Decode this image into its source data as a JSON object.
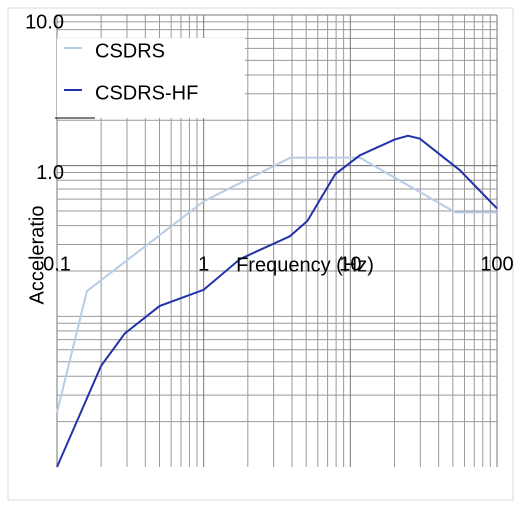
{
  "chart_data": {
    "type": "line",
    "x_label": "Frequency (Hz)",
    "y_label": "Acceleratio",
    "xlog": true,
    "ylog": true,
    "grid": true,
    "legend": "upper left",
    "xlim": [
      0.1,
      100
    ],
    "ylim": [
      0.01,
      10
    ],
    "xticks": [
      0.1,
      1,
      10,
      100
    ],
    "yticks": [
      {
        "value": 10,
        "label": "10.0"
      },
      {
        "value": 1,
        "label": "1.0"
      }
    ],
    "series": [
      {
        "name": "CSDRS",
        "color": "#b8cce4",
        "x": [
          0.1,
          0.16,
          1,
          3.9,
          11.6,
          52,
          100
        ],
        "values": [
          0.023,
          0.147,
          0.58,
          1.13,
          1.13,
          0.49,
          0.49
        ]
      },
      {
        "name": "CSDRS-HF",
        "color": "#2233aa",
        "x": [
          0.1,
          0.2,
          0.29,
          0.5,
          1,
          1.77,
          3.87,
          5.1,
          7.9,
          11.6,
          20,
          24.7,
          29.8,
          56,
          100
        ],
        "values": [
          0.01,
          0.047,
          0.077,
          0.117,
          0.15,
          0.24,
          0.34,
          0.43,
          0.88,
          1.17,
          1.49,
          1.58,
          1.51,
          0.93,
          0.52
        ]
      }
    ]
  }
}
